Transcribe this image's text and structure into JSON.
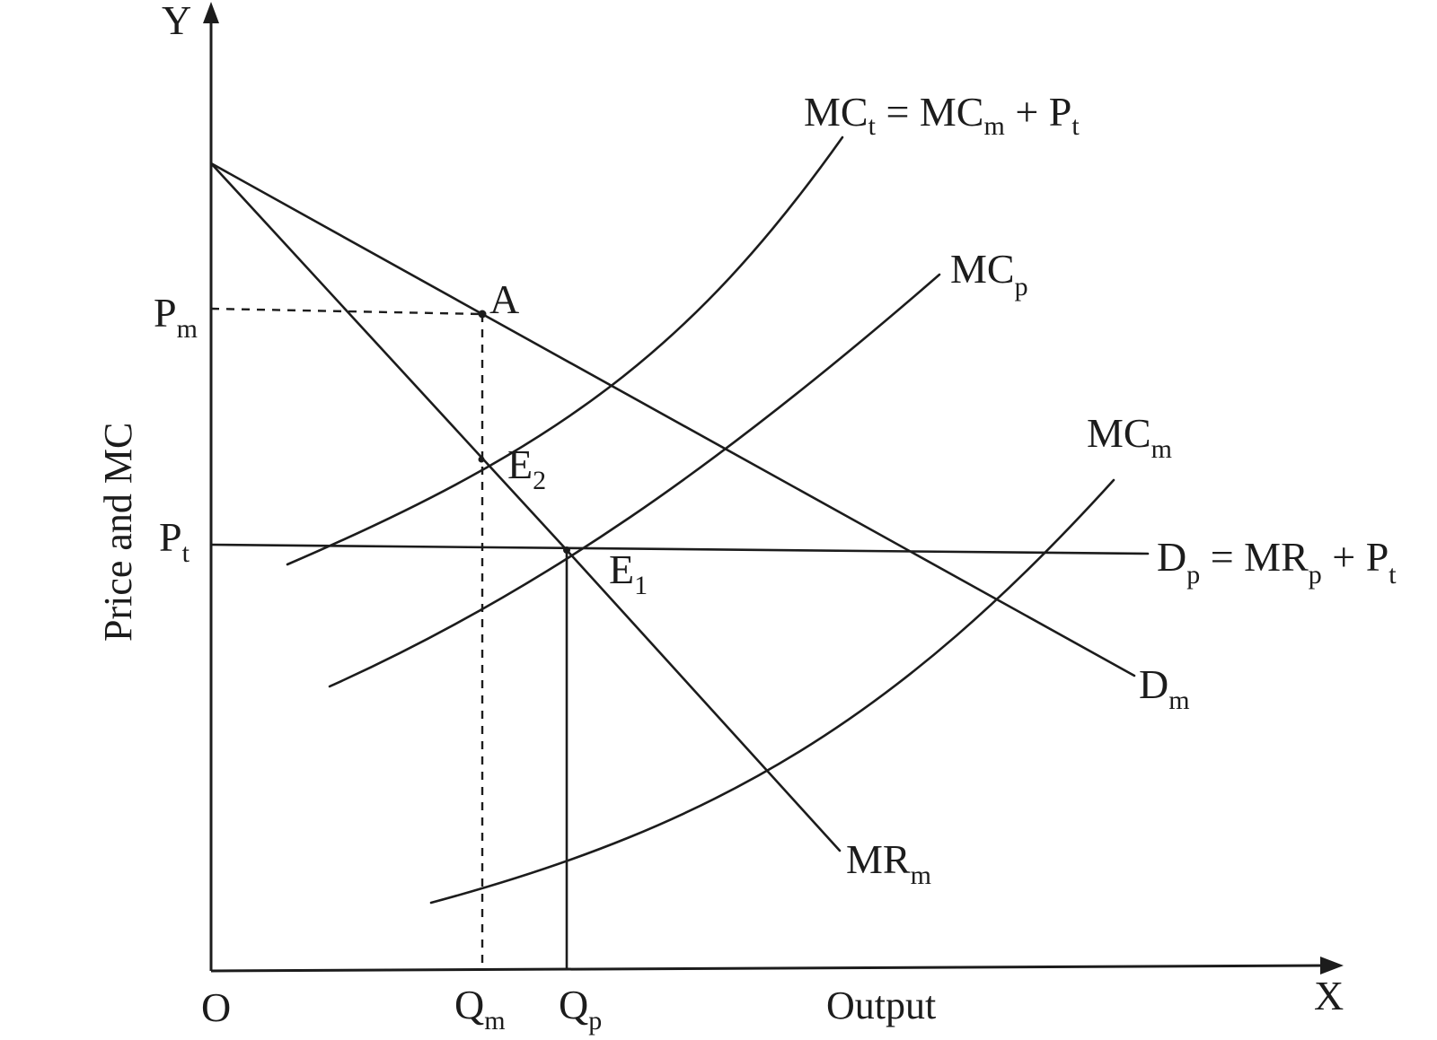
{
  "axes": {
    "y_letter": "Y",
    "x_letter": "X",
    "origin": "O",
    "y_title": "Price and MC",
    "x_title": "Output"
  },
  "ticks": {
    "pm_main": "P",
    "pm_sub": "m",
    "pt_main": "P",
    "pt_sub": "t",
    "qm_main": "Q",
    "qm_sub": "m",
    "qp_main": "Q",
    "qp_sub": "p"
  },
  "points": {
    "a": "A",
    "e2_main": "E",
    "e2_sub": "2",
    "e1_main": "E",
    "e1_sub": "1"
  },
  "curves": {
    "mct": {
      "p1": "MC",
      "s1": "t",
      "p2": " = MC",
      "s2": "m",
      "p3": " + P",
      "s3": "t"
    },
    "mcp": {
      "main": "MC",
      "sub": "p"
    },
    "mcm": {
      "main": "MC",
      "sub": "m"
    },
    "dp": {
      "p1": "D",
      "s1": "p",
      "p2": " = MR",
      "s2": "p",
      "p3": " + P",
      "s3": "t"
    },
    "dm": {
      "main": "D",
      "sub": "m"
    },
    "mrm": {
      "main": "MR",
      "sub": "m"
    }
  }
}
